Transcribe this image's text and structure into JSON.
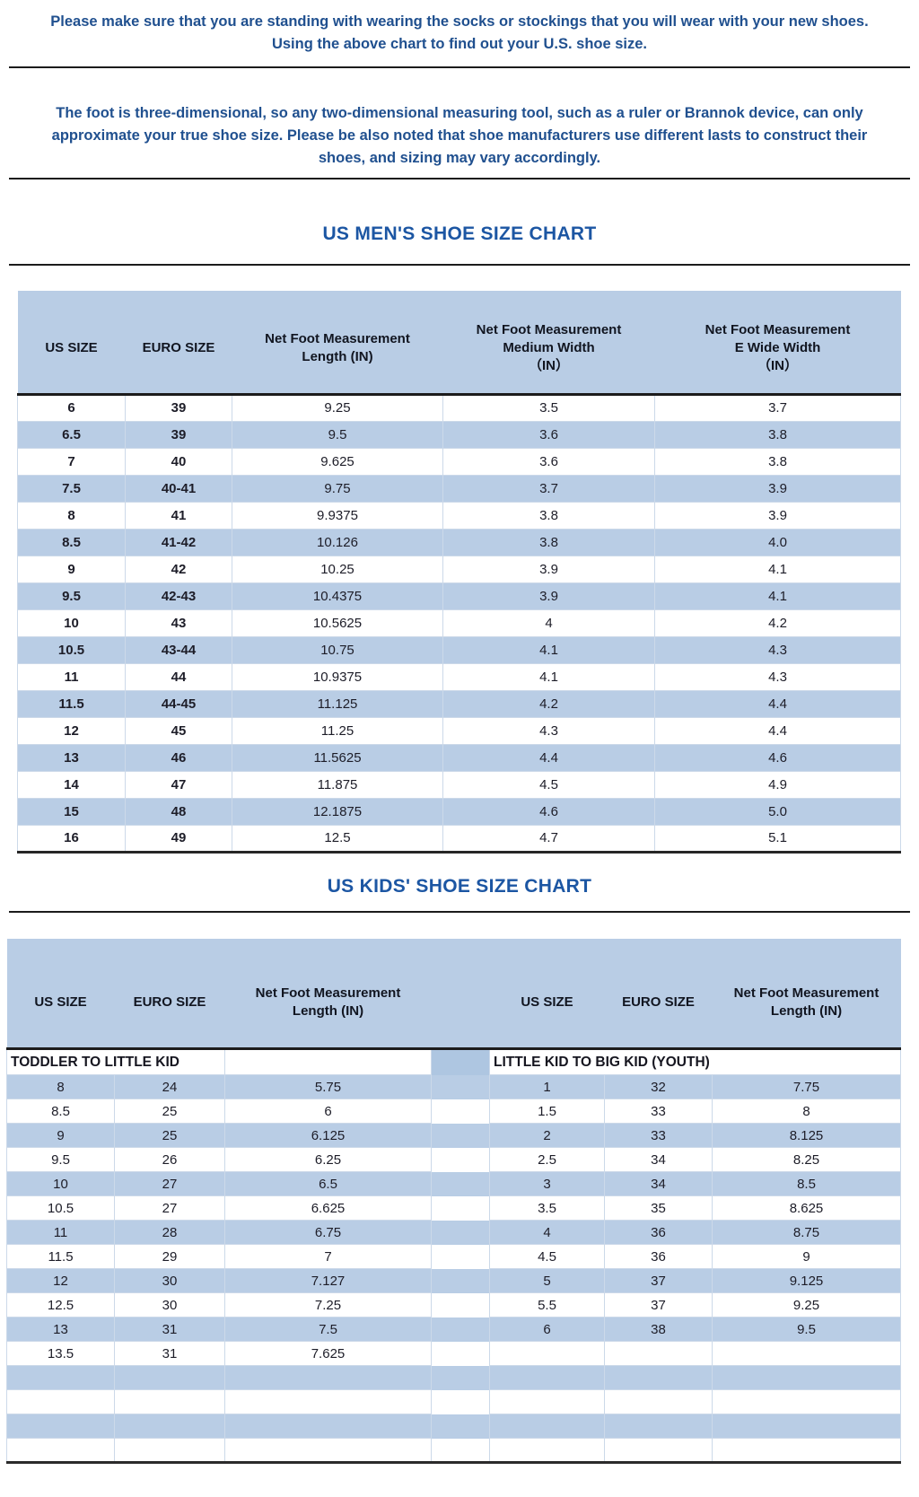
{
  "intro": {
    "line1": "Please make sure that you are standing with wearing the socks or stockings that you will wear with your new shoes.",
    "line2": "Using the above chart to find out your U.S. shoe size."
  },
  "disclaimer": "The foot is three-dimensional, so any two-dimensional measuring tool, such as a ruler or Brannok device, can only approximate your true shoe size. Please be also noted that shoe manufacturers use different lasts to construct their shoes, and sizing may vary accordingly.",
  "mens_chart": {
    "title": "US MEN'S SHOE SIZE CHART",
    "columns": [
      {
        "lines": [
          "US SIZE"
        ]
      },
      {
        "lines": [
          "EURO SIZE"
        ]
      },
      {
        "lines": [
          "Net Foot Measurement",
          "Length (IN)"
        ]
      },
      {
        "lines": [
          "Net Foot Measurement",
          "Medium Width",
          "（IN）"
        ]
      },
      {
        "lines": [
          "Net Foot Measurement",
          "E Wide Width",
          "（IN）"
        ]
      }
    ],
    "rows": [
      [
        "6",
        "39",
        "9.25",
        "3.5",
        "3.7"
      ],
      [
        "6.5",
        "39",
        "9.5",
        "3.6",
        "3.8"
      ],
      [
        "7",
        "40",
        "9.625",
        "3.6",
        "3.8"
      ],
      [
        "7.5",
        "40-41",
        "9.75",
        "3.7",
        "3.9"
      ],
      [
        "8",
        "41",
        "9.9375",
        "3.8",
        "3.9"
      ],
      [
        "8.5",
        "41-42",
        "10.126",
        "3.8",
        "4.0"
      ],
      [
        "9",
        "42",
        "10.25",
        "3.9",
        "4.1"
      ],
      [
        "9.5",
        "42-43",
        "10.4375",
        "3.9",
        "4.1"
      ],
      [
        "10",
        "43",
        "10.5625",
        "4",
        "4.2"
      ],
      [
        "10.5",
        "43-44",
        "10.75",
        "4.1",
        "4.3"
      ],
      [
        "11",
        "44",
        "10.9375",
        "4.1",
        "4.3"
      ],
      [
        "11.5",
        "44-45",
        "11.125",
        "4.2",
        "4.4"
      ],
      [
        "12",
        "45",
        "11.25",
        "4.3",
        "4.4"
      ],
      [
        "13",
        "46",
        "11.5625",
        "4.4",
        "4.6"
      ],
      [
        "14",
        "47",
        "11.875",
        "4.5",
        "4.9"
      ],
      [
        "15",
        "48",
        "12.1875",
        "4.6",
        "5.0"
      ],
      [
        "16",
        "49",
        "12.5",
        "4.7",
        "5.1"
      ]
    ]
  },
  "kids_chart": {
    "title": "US KIDS' SHOE SIZE CHART",
    "columns": [
      {
        "lines": [
          "US SIZE"
        ]
      },
      {
        "lines": [
          "EURO SIZE"
        ]
      },
      {
        "lines": [
          "Net Foot Measurement",
          "Length (IN)"
        ]
      },
      {
        "gap": true,
        "lines": []
      },
      {
        "lines": [
          "US SIZE"
        ]
      },
      {
        "lines": [
          "EURO SIZE"
        ]
      },
      {
        "lines": [
          "Net Foot Measurement",
          "Length (IN)"
        ]
      }
    ],
    "left": {
      "group_label": "TODDLER TO LITTLE KID",
      "rows": [
        [
          "8",
          "24",
          "5.75"
        ],
        [
          "8.5",
          "25",
          "6"
        ],
        [
          "9",
          "25",
          "6.125"
        ],
        [
          "9.5",
          "26",
          "6.25"
        ],
        [
          "10",
          "27",
          "6.5"
        ],
        [
          "10.5",
          "27",
          "6.625"
        ],
        [
          "11",
          "28",
          "6.75"
        ],
        [
          "11.5",
          "29",
          "7"
        ],
        [
          "12",
          "30",
          "7.127"
        ],
        [
          "12.5",
          "30",
          "7.25"
        ],
        [
          "13",
          "31",
          "7.5"
        ],
        [
          "13.5",
          "31",
          "7.625"
        ]
      ]
    },
    "right": {
      "group_label": "LITTLE KID TO BIG KID (YOUTH)",
      "rows": [
        [
          "1",
          "32",
          "7.75"
        ],
        [
          "1.5",
          "33",
          "8"
        ],
        [
          "2",
          "33",
          "8.125"
        ],
        [
          "2.5",
          "34",
          "8.25"
        ],
        [
          "3",
          "34",
          "8.5"
        ],
        [
          "3.5",
          "35",
          "8.625"
        ],
        [
          "4",
          "36",
          "8.75"
        ],
        [
          "4.5",
          "36",
          "9"
        ],
        [
          "5",
          "37",
          "9.125"
        ],
        [
          "5.5",
          "37",
          "9.25"
        ],
        [
          "6",
          "38",
          "9.5"
        ]
      ]
    },
    "trailing_empty_rows": 4
  },
  "colors": {
    "band_blue": "#b9cde5",
    "gap_blue": "#aec6e1",
    "paragraph_blue": "#20508f",
    "title_blue": "#1c56a3",
    "cell_text": "#1d1d28",
    "rule_dark": "#1b1b1b"
  }
}
